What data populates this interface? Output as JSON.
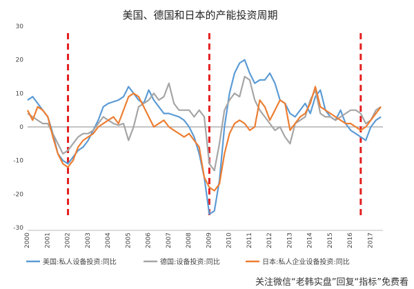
{
  "chart_data": {
    "type": "line",
    "title": "美国、德国和日本的产能投资周期",
    "ylim": [
      -30,
      30
    ],
    "yticks": [
      30,
      20,
      10,
      0,
      -10,
      -20,
      -30
    ],
    "xlim": [
      2000,
      2017.6
    ],
    "xticks": [
      "2000",
      "2001",
      "2002",
      "2003",
      "2004",
      "2005",
      "2006",
      "2007",
      "2008",
      "2009",
      "2010",
      "2011",
      "2012",
      "2013",
      "2014",
      "2015",
      "2016",
      "2017"
    ],
    "grid": false,
    "legend_position": "bottom",
    "markers": [
      2002.0,
      2009.0,
      2016.5
    ],
    "series": [
      {
        "name": "美国:私人设备投资:同比",
        "color": "#5b9bd5",
        "points": [
          [
            2000,
            8
          ],
          [
            2000.25,
            9
          ],
          [
            2000.5,
            7
          ],
          [
            2000.75,
            5
          ],
          [
            2001,
            3
          ],
          [
            2001.25,
            -2
          ],
          [
            2001.5,
            -8
          ],
          [
            2001.75,
            -10
          ],
          [
            2002,
            -11
          ],
          [
            2002.25,
            -9
          ],
          [
            2002.5,
            -7
          ],
          [
            2002.75,
            -6
          ],
          [
            2003,
            -4
          ],
          [
            2003.25,
            -1
          ],
          [
            2003.5,
            2
          ],
          [
            2003.75,
            6
          ],
          [
            2004,
            7
          ],
          [
            2004.25,
            7.5
          ],
          [
            2004.5,
            8
          ],
          [
            2004.75,
            9
          ],
          [
            2005,
            12
          ],
          [
            2005.25,
            10
          ],
          [
            2005.5,
            8
          ],
          [
            2005.75,
            7
          ],
          [
            2006,
            11
          ],
          [
            2006.25,
            8
          ],
          [
            2006.5,
            6
          ],
          [
            2006.75,
            4
          ],
          [
            2007,
            4
          ],
          [
            2007.25,
            3.5
          ],
          [
            2007.5,
            3
          ],
          [
            2007.75,
            2
          ],
          [
            2008,
            0
          ],
          [
            2008.25,
            -3
          ],
          [
            2008.5,
            -8
          ],
          [
            2008.75,
            -15
          ],
          [
            2009,
            -26
          ],
          [
            2009.25,
            -25
          ],
          [
            2009.5,
            -16
          ],
          [
            2009.75,
            0
          ],
          [
            2010,
            10
          ],
          [
            2010.25,
            16
          ],
          [
            2010.5,
            19
          ],
          [
            2010.75,
            20
          ],
          [
            2011,
            16
          ],
          [
            2011.25,
            13
          ],
          [
            2011.5,
            14
          ],
          [
            2011.75,
            14
          ],
          [
            2012,
            16
          ],
          [
            2012.25,
            13
          ],
          [
            2012.5,
            8
          ],
          [
            2012.75,
            7
          ],
          [
            2013,
            4
          ],
          [
            2013.25,
            3
          ],
          [
            2013.5,
            5
          ],
          [
            2013.75,
            7
          ],
          [
            2014,
            4
          ],
          [
            2014.25,
            9
          ],
          [
            2014.5,
            11
          ],
          [
            2014.75,
            5
          ],
          [
            2015,
            3
          ],
          [
            2015.25,
            2
          ],
          [
            2015.5,
            5
          ],
          [
            2015.75,
            1
          ],
          [
            2016,
            -1
          ],
          [
            2016.25,
            -2
          ],
          [
            2016.5,
            -3
          ],
          [
            2016.75,
            -4
          ],
          [
            2017,
            0
          ],
          [
            2017.25,
            2
          ],
          [
            2017.5,
            3
          ]
        ]
      },
      {
        "name": "德国:设备投资:同比",
        "color": "#a5a5a5",
        "points": [
          [
            2000,
            4
          ],
          [
            2000.25,
            3
          ],
          [
            2000.5,
            2
          ],
          [
            2000.75,
            1
          ],
          [
            2001,
            1
          ],
          [
            2001.25,
            -2
          ],
          [
            2001.5,
            -5
          ],
          [
            2001.75,
            -8
          ],
          [
            2002,
            -7
          ],
          [
            2002.25,
            -5
          ],
          [
            2002.5,
            -3
          ],
          [
            2002.75,
            -2
          ],
          [
            2003,
            -2
          ],
          [
            2003.25,
            -1
          ],
          [
            2003.5,
            1
          ],
          [
            2003.75,
            3
          ],
          [
            2004,
            2
          ],
          [
            2004.25,
            1
          ],
          [
            2004.5,
            0.5
          ],
          [
            2004.75,
            1
          ],
          [
            2005,
            -4
          ],
          [
            2005.25,
            0
          ],
          [
            2005.5,
            6
          ],
          [
            2005.75,
            7
          ],
          [
            2006,
            8
          ],
          [
            2006.25,
            10
          ],
          [
            2006.5,
            8
          ],
          [
            2006.75,
            9
          ],
          [
            2007,
            13
          ],
          [
            2007.25,
            7
          ],
          [
            2007.5,
            5
          ],
          [
            2007.75,
            5
          ],
          [
            2008,
            5
          ],
          [
            2008.25,
            3
          ],
          [
            2008.5,
            5
          ],
          [
            2008.75,
            3
          ],
          [
            2009,
            -11
          ],
          [
            2009.25,
            -13
          ],
          [
            2009.5,
            -5
          ],
          [
            2009.75,
            5
          ],
          [
            2010,
            8
          ],
          [
            2010.25,
            10
          ],
          [
            2010.5,
            9
          ],
          [
            2010.75,
            15
          ],
          [
            2011,
            14
          ],
          [
            2011.25,
            8
          ],
          [
            2011.5,
            5
          ],
          [
            2011.75,
            3
          ],
          [
            2012,
            1
          ],
          [
            2012.25,
            -1
          ],
          [
            2012.5,
            0
          ],
          [
            2012.75,
            -3
          ],
          [
            2013,
            -5
          ],
          [
            2013.25,
            1
          ],
          [
            2013.5,
            2
          ],
          [
            2013.75,
            3
          ],
          [
            2014,
            8
          ],
          [
            2014.25,
            11
          ],
          [
            2014.5,
            4
          ],
          [
            2014.75,
            3
          ],
          [
            2015,
            3
          ],
          [
            2015.25,
            2
          ],
          [
            2015.5,
            3
          ],
          [
            2015.75,
            4
          ],
          [
            2016,
            5
          ],
          [
            2016.25,
            5
          ],
          [
            2016.5,
            4
          ],
          [
            2016.75,
            1
          ],
          [
            2017,
            2
          ],
          [
            2017.25,
            5
          ],
          [
            2017.5,
            6
          ]
        ]
      },
      {
        "name": "日本:私人企业设备投资:同比",
        "color": "#ed7d31",
        "points": [
          [
            2000,
            5
          ],
          [
            2000.25,
            2
          ],
          [
            2000.5,
            6
          ],
          [
            2000.75,
            5
          ],
          [
            2001,
            3
          ],
          [
            2001.25,
            -3
          ],
          [
            2001.5,
            -8
          ],
          [
            2001.75,
            -11
          ],
          [
            2002,
            -12
          ],
          [
            2002.25,
            -10
          ],
          [
            2002.5,
            -6
          ],
          [
            2002.75,
            -4
          ],
          [
            2003,
            -3
          ],
          [
            2003.25,
            -2
          ],
          [
            2003.5,
            0
          ],
          [
            2003.75,
            1
          ],
          [
            2004,
            2
          ],
          [
            2004.25,
            3
          ],
          [
            2004.5,
            1
          ],
          [
            2004.75,
            5
          ],
          [
            2005,
            9
          ],
          [
            2005.25,
            10
          ],
          [
            2005.5,
            9
          ],
          [
            2005.75,
            6
          ],
          [
            2006,
            3
          ],
          [
            2006.25,
            0
          ],
          [
            2006.5,
            1
          ],
          [
            2006.75,
            2
          ],
          [
            2007,
            0
          ],
          [
            2007.25,
            -1
          ],
          [
            2007.5,
            -2
          ],
          [
            2007.75,
            -3
          ],
          [
            2008,
            -2
          ],
          [
            2008.25,
            -4
          ],
          [
            2008.5,
            -6
          ],
          [
            2008.75,
            -15
          ],
          [
            2009,
            -18
          ],
          [
            2009.25,
            -19
          ],
          [
            2009.5,
            -17
          ],
          [
            2009.75,
            -8
          ],
          [
            2010,
            -2
          ],
          [
            2010.25,
            1
          ],
          [
            2010.5,
            2
          ],
          [
            2010.75,
            1
          ],
          [
            2011,
            -1
          ],
          [
            2011.25,
            0
          ],
          [
            2011.5,
            8
          ],
          [
            2011.75,
            6
          ],
          [
            2012,
            2
          ],
          [
            2012.25,
            5
          ],
          [
            2012.5,
            8
          ],
          [
            2012.75,
            7
          ],
          [
            2013,
            -1
          ],
          [
            2013.25,
            1
          ],
          [
            2013.5,
            3
          ],
          [
            2013.75,
            4
          ],
          [
            2014,
            7
          ],
          [
            2014.25,
            12
          ],
          [
            2014.5,
            6
          ],
          [
            2014.75,
            5
          ],
          [
            2015,
            4
          ],
          [
            2015.25,
            3
          ],
          [
            2015.5,
            2
          ],
          [
            2015.75,
            1
          ],
          [
            2016,
            1
          ],
          [
            2016.25,
            0
          ],
          [
            2016.5,
            -1
          ],
          [
            2016.75,
            0
          ],
          [
            2017,
            2
          ],
          [
            2017.25,
            4
          ],
          [
            2017.5,
            6
          ]
        ]
      }
    ]
  },
  "watermark": "关注微信“老韩实盘”回复“指标”免费看"
}
